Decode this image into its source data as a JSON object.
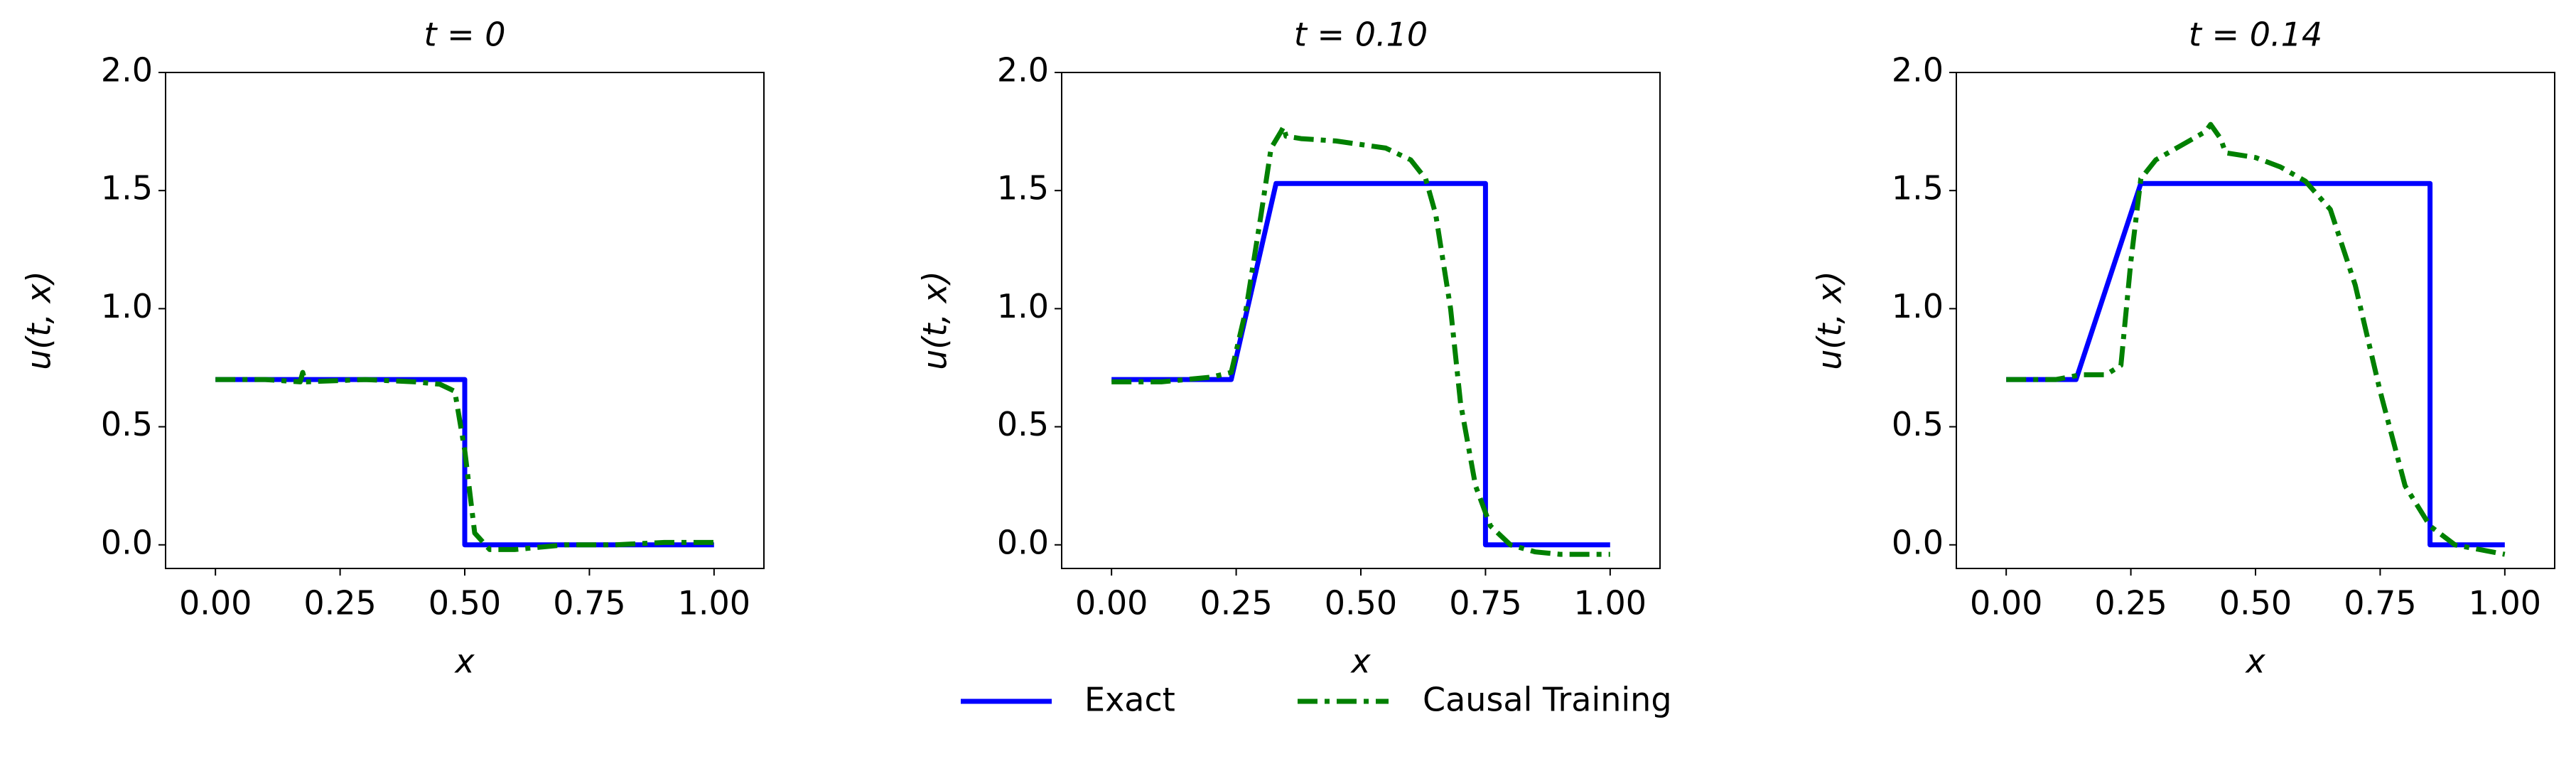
{
  "chart_data": [
    {
      "type": "line",
      "title": "t = 0",
      "xlabel": "x",
      "ylabel": "u(t, x)",
      "xlim": [
        -0.1,
        1.1
      ],
      "ylim": [
        -0.1,
        2.0
      ],
      "xticks": [
        {
          "value": 0,
          "label": "0.00"
        },
        0.25,
        {
          "value": 0.5,
          "label": "0.50"
        },
        0.75,
        {
          "value": 1,
          "label": "1.00"
        }
      ],
      "yticks": [
        {
          "value": 0,
          "label": "0.0"
        },
        0.5,
        {
          "value": 1,
          "label": "1.0"
        },
        1.5,
        {
          "value": 2,
          "label": "2.0"
        }
      ],
      "series": [
        {
          "name": "Exact",
          "color": "#0000ff",
          "style": "solid",
          "x": [
            0,
            0.5,
            0.5,
            1
          ],
          "values": [
            0.7,
            0.7,
            0,
            0
          ]
        },
        {
          "name": "Causal Training",
          "color": "#008000",
          "style": "dashdot",
          "x": [
            0,
            0.1,
            0.17,
            0.175,
            0.18,
            0.3,
            0.4,
            0.45,
            0.48,
            0.5,
            0.52,
            0.55,
            0.6,
            0.7,
            0.8,
            0.9,
            1.0
          ],
          "values": [
            0.7,
            0.7,
            0.69,
            0.73,
            0.69,
            0.7,
            0.69,
            0.68,
            0.65,
            0.4,
            0.05,
            -0.02,
            -0.02,
            0,
            0,
            0.01,
            0.01
          ]
        }
      ]
    },
    {
      "type": "line",
      "title": "t = 0.10",
      "xlabel": "x",
      "ylabel": "u(t, x)",
      "xlim": [
        -0.1,
        1.1
      ],
      "ylim": [
        -0.1,
        2.0
      ],
      "xticks": [
        {
          "value": 0,
          "label": "0.00"
        },
        0.25,
        {
          "value": 0.5,
          "label": "0.50"
        },
        0.75,
        {
          "value": 1,
          "label": "1.00"
        }
      ],
      "yticks": [
        {
          "value": 0,
          "label": "0.0"
        },
        0.5,
        {
          "value": 1,
          "label": "1.0"
        },
        1.5,
        {
          "value": 2,
          "label": "2.0"
        }
      ],
      "series": [
        {
          "color": "#0000ff",
          "style": "solid",
          "x": [
            0,
            0.24,
            0.33,
            0.75,
            0.75,
            1.0
          ],
          "values": [
            0.7,
            0.7,
            1.53,
            1.53,
            0,
            0
          ]
        },
        {
          "color": "#008000",
          "style": "dashdot",
          "x": [
            0,
            0.1,
            0.2,
            0.24,
            0.27,
            0.3,
            0.32,
            0.34,
            0.345,
            0.35,
            0.38,
            0.45,
            0.55,
            0.6,
            0.63,
            0.65,
            0.68,
            0.7,
            0.73,
            0.76,
            0.8,
            0.85,
            0.9,
            1.0
          ],
          "values": [
            0.69,
            0.69,
            0.71,
            0.73,
            1.0,
            1.4,
            1.68,
            1.75,
            1.77,
            1.73,
            1.72,
            1.71,
            1.68,
            1.63,
            1.55,
            1.4,
            1.0,
            0.6,
            0.25,
            0.08,
            0,
            -0.03,
            -0.04,
            -0.04
          ]
        }
      ]
    },
    {
      "type": "line",
      "title": "t = 0.14",
      "xlabel": "x",
      "ylabel": "u(t, x)",
      "xlim": [
        -0.1,
        1.1
      ],
      "ylim": [
        -0.1,
        2.0
      ],
      "xticks": [
        {
          "value": 0,
          "label": "0.00"
        },
        0.25,
        {
          "value": 0.5,
          "label": "0.50"
        },
        0.75,
        {
          "value": 1,
          "label": "1.00"
        }
      ],
      "yticks": [
        {
          "value": 0,
          "label": "0.0"
        },
        0.5,
        {
          "value": 1,
          "label": "1.0"
        },
        1.5,
        {
          "value": 2,
          "label": "2.0"
        }
      ],
      "series": [
        {
          "color": "#0000ff",
          "style": "solid",
          "x": [
            0,
            0.14,
            0.27,
            0.85,
            0.85,
            1.0
          ],
          "values": [
            0.7,
            0.7,
            1.53,
            1.53,
            0,
            0
          ]
        },
        {
          "color": "#008000",
          "style": "dashdot",
          "x": [
            0,
            0.1,
            0.15,
            0.2,
            0.23,
            0.25,
            0.27,
            0.3,
            0.35,
            0.4,
            0.41,
            0.42,
            0.43,
            0.44,
            0.5,
            0.55,
            0.6,
            0.65,
            0.7,
            0.75,
            0.8,
            0.85,
            0.9,
            0.95,
            1.0
          ],
          "values": [
            0.7,
            0.7,
            0.72,
            0.72,
            0.76,
            1.2,
            1.55,
            1.63,
            1.69,
            1.75,
            1.78,
            1.75,
            1.72,
            1.66,
            1.64,
            1.6,
            1.54,
            1.42,
            1.1,
            0.65,
            0.25,
            0.08,
            0,
            -0.02,
            -0.04
          ]
        }
      ]
    }
  ]
}
